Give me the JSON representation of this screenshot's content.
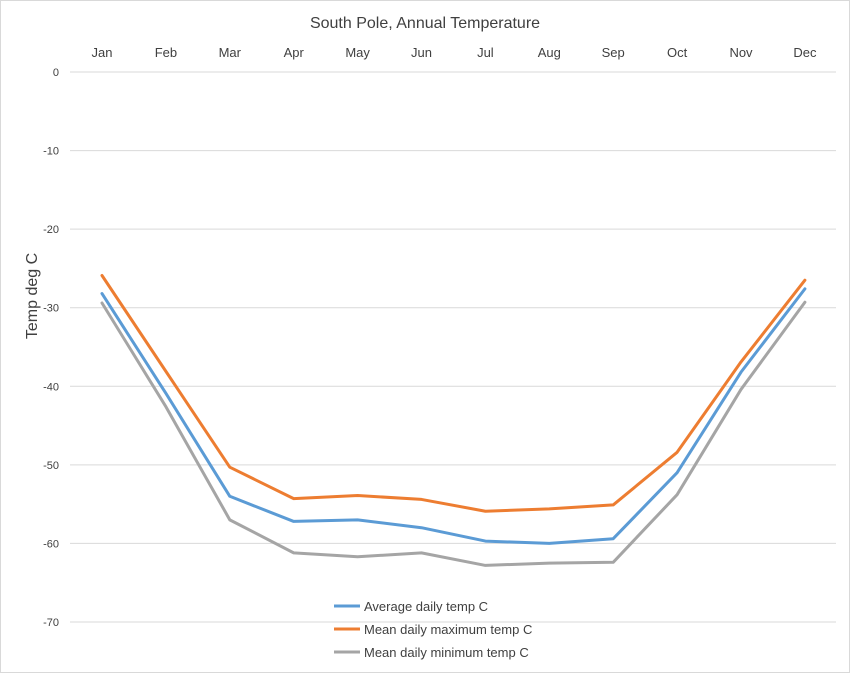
{
  "chart_data": {
    "type": "line",
    "title": "South Pole, Annual Temperature",
    "xlabel": "",
    "ylabel": "Temp deg C",
    "categories": [
      "Jan",
      "Feb",
      "Mar",
      "Apr",
      "May",
      "Jun",
      "Jul",
      "Aug",
      "Sep",
      "Oct",
      "Nov",
      "Dec"
    ],
    "ylim": [
      -70,
      0
    ],
    "yticks": [
      0,
      -10,
      -20,
      -30,
      -40,
      -50,
      -60,
      -70
    ],
    "x_axis_position": "top",
    "grid": true,
    "legend_position": "bottom",
    "series": [
      {
        "name": "Average daily temp C",
        "color": "#5b9bd5",
        "values": [
          -28.2,
          -40.9,
          -54.0,
          -57.2,
          -57.0,
          -58.0,
          -59.7,
          -60.0,
          -59.4,
          -51.0,
          -38.2,
          -27.6
        ]
      },
      {
        "name": "Mean daily maximum temp C",
        "color": "#ed7d31",
        "values": [
          -25.9,
          -38.1,
          -50.3,
          -54.3,
          -53.9,
          -54.4,
          -55.9,
          -55.6,
          -55.1,
          -48.4,
          -36.9,
          -26.5
        ]
      },
      {
        "name": "Mean daily minimum temp C",
        "color": "#a5a5a5",
        "values": [
          -29.4,
          -42.6,
          -57.0,
          -61.2,
          -61.7,
          -61.2,
          -62.8,
          -62.5,
          -62.4,
          -53.8,
          -40.4,
          -29.3
        ]
      }
    ]
  }
}
